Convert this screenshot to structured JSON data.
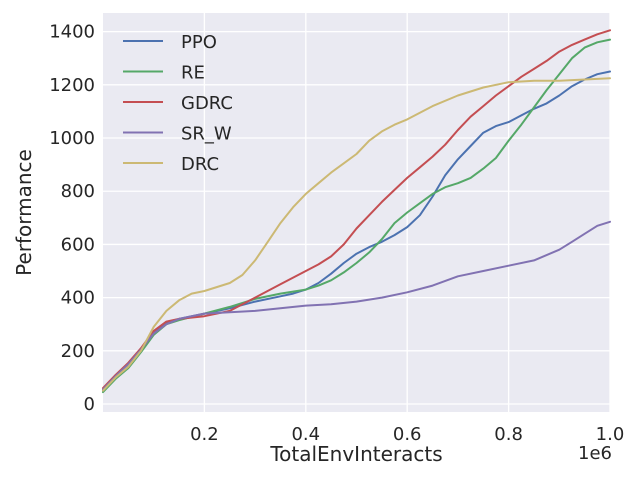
{
  "chart_data": {
    "type": "line",
    "title": "",
    "xlabel": "TotalEnvInteracts",
    "ylabel": "Performance",
    "x_offset_label": "1e6",
    "xlim": [
      0.0,
      1.0
    ],
    "ylim": [
      -30,
      1470
    ],
    "xticks": [
      0.2,
      0.4,
      0.6,
      0.8,
      1.0
    ],
    "xtick_labels": [
      "0.2",
      "0.4",
      "0.6",
      "0.8",
      "1.0"
    ],
    "yticks": [
      0,
      200,
      400,
      600,
      800,
      1000,
      1200,
      1400
    ],
    "ytick_labels": [
      "0",
      "200",
      "400",
      "600",
      "800",
      "1000",
      "1200",
      "1400"
    ],
    "grid": true,
    "legend_position": "upper-left",
    "series": [
      {
        "name": "PPO",
        "color": "#4c72b0",
        "x": [
          0.0,
          0.025,
          0.05,
          0.075,
          0.1,
          0.125,
          0.15,
          0.2,
          0.25,
          0.3,
          0.35,
          0.375,
          0.4,
          0.425,
          0.45,
          0.475,
          0.5,
          0.525,
          0.55,
          0.575,
          0.6,
          0.625,
          0.65,
          0.675,
          0.7,
          0.725,
          0.75,
          0.775,
          0.8,
          0.825,
          0.85,
          0.875,
          0.9,
          0.925,
          0.95,
          0.975,
          1.0
        ],
        "y": [
          50,
          100,
          140,
          200,
          270,
          305,
          320,
          340,
          360,
          385,
          405,
          415,
          430,
          455,
          490,
          530,
          565,
          590,
          610,
          635,
          665,
          710,
          780,
          860,
          920,
          970,
          1020,
          1045,
          1060,
          1085,
          1110,
          1130,
          1160,
          1195,
          1220,
          1240,
          1250
        ]
      },
      {
        "name": "RE",
        "color": "#55a868",
        "x": [
          0.0,
          0.025,
          0.05,
          0.075,
          0.1,
          0.125,
          0.15,
          0.2,
          0.25,
          0.3,
          0.35,
          0.4,
          0.425,
          0.45,
          0.475,
          0.5,
          0.525,
          0.55,
          0.575,
          0.6,
          0.625,
          0.65,
          0.675,
          0.7,
          0.725,
          0.75,
          0.775,
          0.8,
          0.825,
          0.85,
          0.875,
          0.9,
          0.925,
          0.95,
          0.975,
          1.0
        ],
        "y": [
          45,
          95,
          135,
          195,
          260,
          300,
          315,
          340,
          365,
          395,
          415,
          430,
          445,
          465,
          495,
          530,
          570,
          620,
          680,
          720,
          755,
          790,
          815,
          830,
          850,
          885,
          925,
          990,
          1050,
          1115,
          1180,
          1240,
          1300,
          1340,
          1360,
          1370
        ]
      },
      {
        "name": "GDRC",
        "color": "#c44e52",
        "x": [
          0.0,
          0.025,
          0.05,
          0.075,
          0.1,
          0.125,
          0.15,
          0.2,
          0.25,
          0.3,
          0.35,
          0.4,
          0.425,
          0.45,
          0.475,
          0.5,
          0.525,
          0.55,
          0.575,
          0.6,
          0.625,
          0.65,
          0.675,
          0.7,
          0.725,
          0.75,
          0.775,
          0.8,
          0.825,
          0.85,
          0.875,
          0.9,
          0.925,
          0.95,
          0.975,
          1.0
        ],
        "y": [
          60,
          110,
          155,
          210,
          275,
          310,
          320,
          330,
          350,
          400,
          450,
          500,
          525,
          555,
          600,
          660,
          710,
          760,
          805,
          850,
          890,
          930,
          975,
          1030,
          1080,
          1120,
          1160,
          1195,
          1230,
          1260,
          1290,
          1325,
          1350,
          1370,
          1390,
          1405
        ]
      },
      {
        "name": "SR_W",
        "color": "#8172b2",
        "x": [
          0.0,
          0.025,
          0.05,
          0.075,
          0.1,
          0.125,
          0.15,
          0.2,
          0.25,
          0.3,
          0.35,
          0.4,
          0.45,
          0.5,
          0.55,
          0.6,
          0.65,
          0.7,
          0.75,
          0.8,
          0.85,
          0.9,
          0.925,
          0.95,
          0.975,
          1.0
        ],
        "y": [
          55,
          105,
          150,
          205,
          265,
          300,
          320,
          340,
          345,
          350,
          360,
          370,
          375,
          385,
          400,
          420,
          445,
          480,
          500,
          520,
          540,
          580,
          610,
          640,
          670,
          685
        ]
      },
      {
        "name": "DRC",
        "color": "#ccb974",
        "x": [
          0.0,
          0.025,
          0.05,
          0.075,
          0.1,
          0.125,
          0.15,
          0.175,
          0.2,
          0.225,
          0.25,
          0.275,
          0.3,
          0.325,
          0.35,
          0.375,
          0.4,
          0.425,
          0.45,
          0.475,
          0.5,
          0.525,
          0.55,
          0.575,
          0.6,
          0.65,
          0.7,
          0.75,
          0.8,
          0.85,
          0.9,
          0.95,
          1.0
        ],
        "y": [
          50,
          100,
          140,
          200,
          290,
          350,
          390,
          415,
          425,
          440,
          455,
          485,
          540,
          610,
          680,
          740,
          790,
          830,
          870,
          905,
          940,
          990,
          1025,
          1050,
          1070,
          1120,
          1160,
          1190,
          1210,
          1215,
          1215,
          1220,
          1225
        ]
      }
    ]
  }
}
